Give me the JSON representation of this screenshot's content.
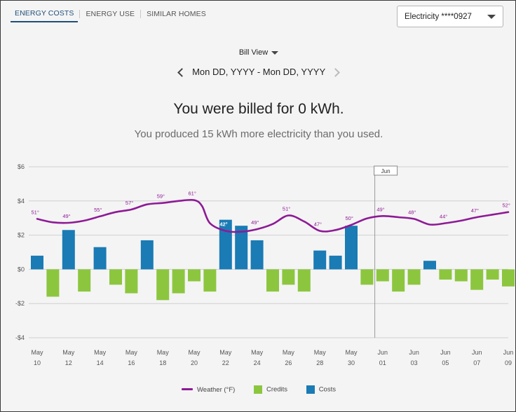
{
  "tabs": [
    {
      "label": "ENERGY COSTS",
      "active": true
    },
    {
      "label": "ENERGY USE",
      "active": false
    },
    {
      "label": "SIMILAR HOMES",
      "active": false
    }
  ],
  "account_select": {
    "selected": "Electricity ****0927"
  },
  "view_select": {
    "label": "Bill View"
  },
  "date_range": {
    "label": "Mon DD, YYYY - Mon DD, YYYY"
  },
  "summary": {
    "billed": "You were billed for 0 kWh.",
    "produced": "You produced 15 kWh more electricity than you used."
  },
  "colors": {
    "weather": "#8e1a96",
    "credits": "#8cc63f",
    "costs": "#1a7bb5"
  },
  "chart_data": {
    "type": "bar",
    "ylim": [
      -4,
      6
    ],
    "yticks": [
      {
        "v": 6,
        "label": "$6"
      },
      {
        "v": 4,
        "label": "$4"
      },
      {
        "v": 2,
        "label": "$2"
      },
      {
        "v": 0,
        "label": "$0"
      },
      {
        "v": -2,
        "label": "-$2"
      },
      {
        "v": -4,
        "label": "-$4"
      }
    ],
    "xticks": [
      {
        "d": 0,
        "m": "May",
        "n": "10"
      },
      {
        "d": 2,
        "m": "May",
        "n": "12"
      },
      {
        "d": 4,
        "m": "May",
        "n": "14"
      },
      {
        "d": 6,
        "m": "May",
        "n": "16"
      },
      {
        "d": 8,
        "m": "May",
        "n": "18"
      },
      {
        "d": 10,
        "m": "May",
        "n": "20"
      },
      {
        "d": 12,
        "m": "May",
        "n": "22"
      },
      {
        "d": 14,
        "m": "May",
        "n": "24"
      },
      {
        "d": 16,
        "m": "May",
        "n": "26"
      },
      {
        "d": 18,
        "m": "May",
        "n": "28"
      },
      {
        "d": 20,
        "m": "May",
        "n": "30"
      },
      {
        "d": 22,
        "m": "Jun",
        "n": "01"
      },
      {
        "d": 24,
        "m": "Jun",
        "n": "03"
      },
      {
        "d": 26,
        "m": "Jun",
        "n": "05"
      },
      {
        "d": 28,
        "m": "Jun",
        "n": "07"
      },
      {
        "d": 30,
        "m": "Jun",
        "n": "09"
      }
    ],
    "marker": {
      "d": 21.5,
      "label": "Jun"
    },
    "bars": [
      {
        "d": 0,
        "v": 0.8,
        "kind": "cost"
      },
      {
        "d": 1,
        "v": -1.6,
        "kind": "credit"
      },
      {
        "d": 2,
        "v": 2.3,
        "kind": "cost"
      },
      {
        "d": 3,
        "v": -1.3,
        "kind": "credit"
      },
      {
        "d": 4,
        "v": 1.3,
        "kind": "cost"
      },
      {
        "d": 5,
        "v": -0.9,
        "kind": "credit"
      },
      {
        "d": 6,
        "v": -1.4,
        "kind": "credit"
      },
      {
        "d": 7,
        "v": 1.7,
        "kind": "cost"
      },
      {
        "d": 8,
        "v": -1.8,
        "kind": "credit"
      },
      {
        "d": 9,
        "v": -1.4,
        "kind": "credit"
      },
      {
        "d": 10,
        "v": -0.7,
        "kind": "credit"
      },
      {
        "d": 11,
        "v": -1.3,
        "kind": "credit"
      },
      {
        "d": 12,
        "v": 2.9,
        "kind": "cost"
      },
      {
        "d": 13,
        "v": 2.55,
        "kind": "cost"
      },
      {
        "d": 14,
        "v": 1.7,
        "kind": "cost"
      },
      {
        "d": 15,
        "v": -1.3,
        "kind": "credit"
      },
      {
        "d": 16,
        "v": -0.9,
        "kind": "credit"
      },
      {
        "d": 17,
        "v": -1.3,
        "kind": "credit"
      },
      {
        "d": 18,
        "v": 1.1,
        "kind": "cost"
      },
      {
        "d": 19,
        "v": 0.8,
        "kind": "cost"
      },
      {
        "d": 20,
        "v": 2.55,
        "kind": "cost"
      },
      {
        "d": 21,
        "v": -0.9,
        "kind": "credit"
      },
      {
        "d": 22,
        "v": -0.7,
        "kind": "credit"
      },
      {
        "d": 23,
        "v": -1.3,
        "kind": "credit"
      },
      {
        "d": 24,
        "v": -0.9,
        "kind": "credit"
      },
      {
        "d": 25,
        "v": 0.5,
        "kind": "cost"
      },
      {
        "d": 26,
        "v": -0.6,
        "kind": "credit"
      },
      {
        "d": 27,
        "v": -0.7,
        "kind": "credit"
      },
      {
        "d": 28,
        "v": -1.2,
        "kind": "credit"
      },
      {
        "d": 29,
        "v": -0.6,
        "kind": "credit"
      },
      {
        "d": 30,
        "v": -1.0,
        "kind": "credit"
      }
    ],
    "weather_curve": [
      {
        "d": 0,
        "v": 2.95
      },
      {
        "d": 1,
        "v": 2.75
      },
      {
        "d": 2,
        "v": 2.72
      },
      {
        "d": 3,
        "v": 2.85
      },
      {
        "d": 4,
        "v": 3.1
      },
      {
        "d": 5,
        "v": 3.35
      },
      {
        "d": 6,
        "v": 3.5
      },
      {
        "d": 7,
        "v": 3.8
      },
      {
        "d": 8,
        "v": 3.88
      },
      {
        "d": 9,
        "v": 4.0
      },
      {
        "d": 10,
        "v": 4.05
      },
      {
        "d": 10.5,
        "v": 3.7
      },
      {
        "d": 11,
        "v": 2.7
      },
      {
        "d": 12,
        "v": 2.25
      },
      {
        "d": 13,
        "v": 2.2
      },
      {
        "d": 14,
        "v": 2.35
      },
      {
        "d": 15,
        "v": 2.65
      },
      {
        "d": 16,
        "v": 3.15
      },
      {
        "d": 17,
        "v": 2.8
      },
      {
        "d": 18,
        "v": 2.25
      },
      {
        "d": 19,
        "v": 2.3
      },
      {
        "d": 20,
        "v": 2.6
      },
      {
        "d": 21,
        "v": 2.98
      },
      {
        "d": 22,
        "v": 3.12
      },
      {
        "d": 23,
        "v": 3.05
      },
      {
        "d": 24,
        "v": 2.95
      },
      {
        "d": 25,
        "v": 2.62
      },
      {
        "d": 26,
        "v": 2.7
      },
      {
        "d": 27,
        "v": 2.85
      },
      {
        "d": 28,
        "v": 3.05
      },
      {
        "d": 29,
        "v": 3.2
      },
      {
        "d": 30,
        "v": 3.35
      }
    ],
    "weather_labels": [
      {
        "d": 0.5,
        "v": 2.95,
        "label": "51°"
      },
      {
        "d": 2.5,
        "v": 2.72,
        "label": "49°"
      },
      {
        "d": 4.5,
        "v": 3.1,
        "label": "55°"
      },
      {
        "d": 6.5,
        "v": 3.5,
        "label": "57°"
      },
      {
        "d": 8.5,
        "v": 3.88,
        "label": "59°"
      },
      {
        "d": 10.5,
        "v": 4.05,
        "label": "61°"
      },
      {
        "d": 12.5,
        "v": 2.25,
        "label": "42°"
      },
      {
        "d": 14.5,
        "v": 2.35,
        "label": "49°"
      },
      {
        "d": 16.5,
        "v": 3.15,
        "label": "51°"
      },
      {
        "d": 18.5,
        "v": 2.25,
        "label": "47°"
      },
      {
        "d": 20.5,
        "v": 2.6,
        "label": "50°"
      },
      {
        "d": 22.5,
        "v": 3.12,
        "label": "49°"
      },
      {
        "d": 24.5,
        "v": 2.95,
        "label": "48°"
      },
      {
        "d": 26.5,
        "v": 2.7,
        "label": "44°"
      },
      {
        "d": 28.5,
        "v": 3.05,
        "label": "47°"
      },
      {
        "d": 30.5,
        "v": 3.35,
        "label": "52°"
      }
    ]
  },
  "legend": {
    "weather": "Weather (°F)",
    "credits": "Credits",
    "costs": "Costs"
  }
}
